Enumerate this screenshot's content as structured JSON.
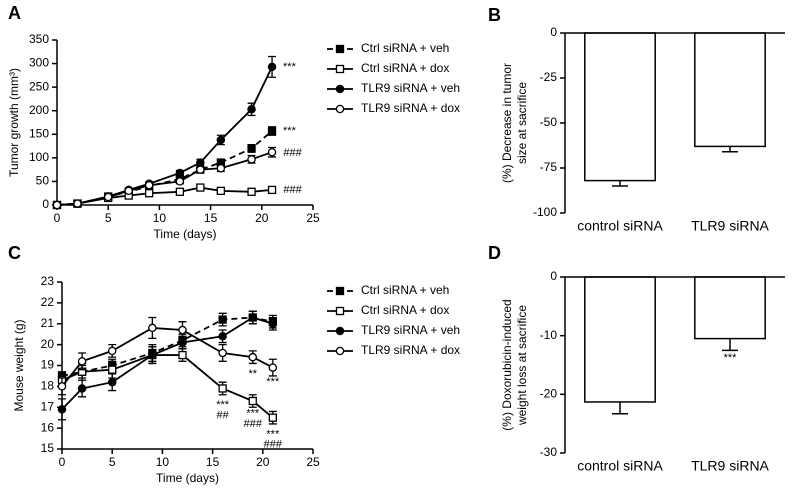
{
  "chart_data": [
    {
      "type": "line",
      "panel_label": "A",
      "xlabel": "Time (days)",
      "ylabel": [
        "Tumor growth (mm³)"
      ],
      "x": [
        0,
        2,
        5,
        7,
        9,
        12,
        14,
        16,
        19,
        21
      ],
      "xlim": [
        0,
        25
      ],
      "xticks": [
        0,
        5,
        10,
        15,
        20,
        25
      ],
      "ylim": [
        0,
        350
      ],
      "yticks": [
        0,
        50,
        100,
        150,
        200,
        250,
        300,
        350
      ],
      "series": [
        {
          "name": "Ctrl siRNA + veh",
          "color": "#000000",
          "marker": "square",
          "filled": true,
          "dash": true,
          "values": [
            0,
            3,
            18,
            28,
            40,
            55,
            75,
            90,
            120,
            157
          ],
          "errors": [
            0,
            1,
            3,
            3,
            3,
            5,
            6,
            7,
            8,
            9
          ]
        },
        {
          "name": "Ctrl siRNA + dox",
          "color": "#000000",
          "marker": "square",
          "filled": false,
          "dash": false,
          "values": [
            0,
            3,
            15,
            20,
            25,
            28,
            37,
            30,
            28,
            32
          ],
          "errors": [
            0,
            1,
            2,
            2,
            3,
            4,
            4,
            4,
            4,
            4
          ]
        },
        {
          "name": "TLR9 siRNA + veh",
          "color": "#000000",
          "marker": "circle",
          "filled": true,
          "dash": false,
          "values": [
            0,
            3,
            18,
            32,
            45,
            68,
            90,
            138,
            203,
            293
          ],
          "errors": [
            0,
            1,
            3,
            3,
            4,
            5,
            7,
            10,
            13,
            22
          ]
        },
        {
          "name": "TLR9 siRNA + dox",
          "color": "#000000",
          "marker": "circle",
          "filled": false,
          "dash": false,
          "values": [
            0,
            3,
            17,
            30,
            42,
            50,
            75,
            78,
            97,
            112
          ],
          "errors": [
            0,
            1,
            3,
            3,
            4,
            5,
            6,
            7,
            8,
            10
          ]
        }
      ],
      "annotations": [
        {
          "text": "***",
          "x": 22.7,
          "y": 293
        },
        {
          "text": "***",
          "x": 22.7,
          "y": 157
        },
        {
          "text": "###",
          "x": 23,
          "y": 110
        },
        {
          "text": "###",
          "x": 23,
          "y": 32
        }
      ]
    },
    {
      "type": "bar",
      "panel_label": "B",
      "ylabel": [
        "(%) Decrease in tumor",
        "size at sacrifice"
      ],
      "categories": [
        "control siRNA",
        "TLR9 siRNA"
      ],
      "values": [
        -82,
        -63
      ],
      "errors": [
        3,
        3
      ],
      "color": "#ffffff",
      "ylim": [
        -100,
        0
      ],
      "yticks": [
        -100,
        -75,
        -50,
        -25,
        0
      ],
      "annotations": []
    },
    {
      "type": "line",
      "panel_label": "C",
      "xlabel": "Time (days)",
      "ylabel": [
        "Mouse weight (g)"
      ],
      "x": [
        0,
        2,
        5,
        9,
        12,
        16,
        19,
        21
      ],
      "xlim": [
        0,
        25
      ],
      "xticks": [
        0,
        5,
        10,
        15,
        20,
        25
      ],
      "ylim": [
        15,
        23
      ],
      "yticks": [
        15,
        16,
        17,
        18,
        19,
        20,
        21,
        22,
        23
      ],
      "series": [
        {
          "name": "Ctrl siRNA + veh",
          "color": "#000000",
          "marker": "square",
          "filled": true,
          "dash": true,
          "values": [
            18.5,
            18.7,
            19.0,
            19.6,
            20.2,
            21.2,
            21.3,
            21.1
          ],
          "errors": [
            0.2,
            0.3,
            0.3,
            0.4,
            0.3,
            0.3,
            0.3,
            0.3
          ]
        },
        {
          "name": "Ctrl siRNA + dox",
          "color": "#000000",
          "marker": "square",
          "filled": false,
          "dash": false,
          "values": [
            18.3,
            18.7,
            18.8,
            19.5,
            19.5,
            17.9,
            17.3,
            16.5
          ],
          "errors": [
            0.3,
            0.4,
            0.4,
            0.4,
            0.3,
            0.3,
            0.3,
            0.3
          ]
        },
        {
          "name": "TLR9 siRNA + veh",
          "color": "#000000",
          "marker": "circle",
          "filled": true,
          "dash": false,
          "values": [
            16.9,
            17.9,
            18.2,
            19.5,
            20.1,
            20.4,
            21.3,
            21.0
          ],
          "errors": [
            0.5,
            0.4,
            0.4,
            0.4,
            0.3,
            0.3,
            0.3,
            0.3
          ]
        },
        {
          "name": "TLR9 siRNA + dox",
          "color": "#000000",
          "marker": "circle",
          "filled": false,
          "dash": false,
          "values": [
            18.0,
            19.2,
            19.7,
            20.8,
            20.7,
            19.6,
            19.4,
            18.9
          ],
          "errors": [
            0.4,
            0.4,
            0.3,
            0.5,
            0.4,
            0.4,
            0.3,
            0.4
          ]
        }
      ],
      "annotations": [
        {
          "text": "***",
          "x": 16,
          "y": 17.1
        },
        {
          "text": "##",
          "x": 16,
          "y": 16.6
        },
        {
          "text": "**",
          "x": 19,
          "y": 18.6
        },
        {
          "text": "***",
          "x": 19,
          "y": 16.7
        },
        {
          "text": "###",
          "x": 19,
          "y": 16.2
        },
        {
          "text": "***",
          "x": 21,
          "y": 18.2
        },
        {
          "text": "***",
          "x": 21,
          "y": 15.7
        },
        {
          "text": "###",
          "x": 21,
          "y": 15.2
        }
      ]
    },
    {
      "type": "bar",
      "panel_label": "D",
      "ylabel": [
        "(%) Doxorubicin-induced",
        "weight loss at sacrifice"
      ],
      "categories": [
        "control siRNA",
        "TLR9 siRNA"
      ],
      "values": [
        -21.3,
        -10.5
      ],
      "errors": [
        2,
        2
      ],
      "color": "#ffffff",
      "ylim": [
        -30,
        0
      ],
      "yticks": [
        -30,
        -20,
        -10,
        0
      ],
      "annotations": [
        {
          "text": "***",
          "category": "TLR9 siRNA",
          "y": -13.8
        }
      ]
    }
  ]
}
